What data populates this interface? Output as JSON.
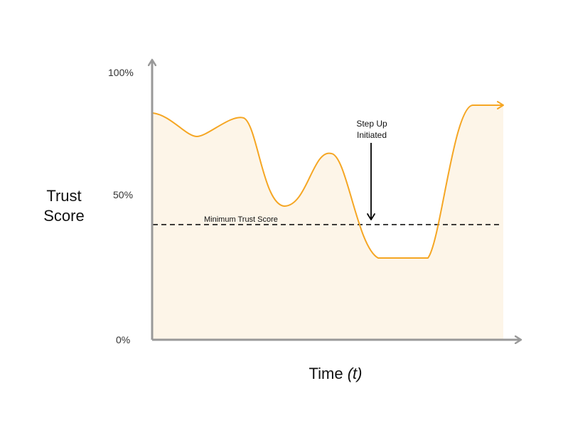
{
  "chart_data": {
    "type": "area",
    "y_axis": {
      "title_line1": "Trust",
      "title_line2": "Score",
      "ticks": [
        "100%",
        "50%",
        "0%"
      ],
      "tick_values": [
        100,
        50,
        0
      ],
      "ylim": [
        0,
        100
      ]
    },
    "x_axis": {
      "title_text": "Time ",
      "title_var": "(t)"
    },
    "threshold": {
      "label": "Minimum Trust Score",
      "value": 43
    },
    "annotation": {
      "line1": "Step Up",
      "line2": "Initiated"
    },
    "series": [
      {
        "values": [
          85,
          76,
          83,
          50,
          70,
          30,
          30,
          88,
          88
        ]
      }
    ],
    "colors": {
      "line": "#F5A623",
      "fill": "#FDF5E8",
      "axis": "#999999",
      "threshold": "#000000"
    }
  }
}
